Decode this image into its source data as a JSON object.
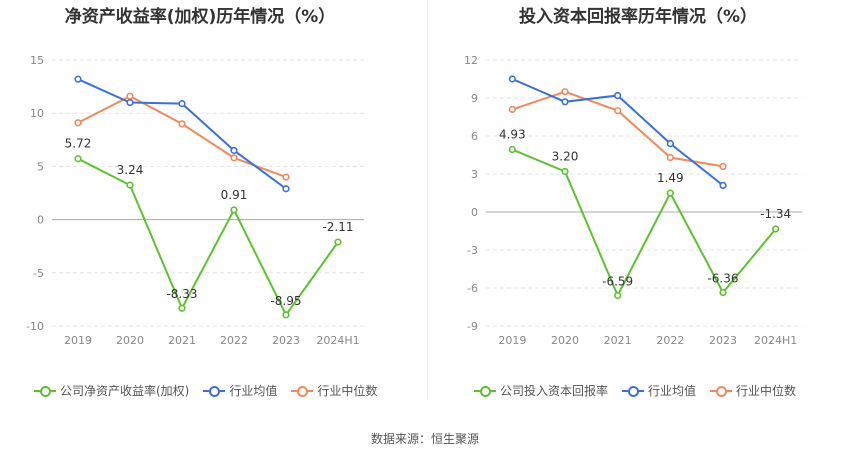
{
  "colors": {
    "company": "#5ec130",
    "industry_avg": "#3a6fdc",
    "industry_median": "#f08a5d"
  },
  "source": "数据来源：恒生聚源",
  "legend": {
    "left": [
      "公司净资产收益率(加权)",
      "行业均值",
      "行业中位数"
    ],
    "right": [
      "公司投入资本回报率",
      "行业均值",
      "行业中位数"
    ]
  },
  "chart_data": [
    {
      "type": "line",
      "title": "净资产收益率(加权)历年情况（%）",
      "categories": [
        "2019",
        "2020",
        "2021",
        "2022",
        "2023",
        "2024H1"
      ],
      "ylim": [
        -10,
        15
      ],
      "yticks": [
        15,
        10,
        5,
        0,
        -5,
        -10
      ],
      "series": [
        {
          "name": "公司净资产收益率(加权)",
          "values": [
            5.72,
            3.24,
            -8.33,
            0.91,
            -8.95,
            -2.11
          ],
          "labels": [
            "5.72",
            "3.24",
            "-8.33",
            "0.91",
            "-8.95",
            "-2.11"
          ]
        },
        {
          "name": "行业均值",
          "values": [
            13.2,
            11.0,
            10.9,
            6.5,
            2.9,
            null
          ]
        },
        {
          "name": "行业中位数",
          "values": [
            9.1,
            11.6,
            9.0,
            5.8,
            4.0,
            null
          ]
        }
      ]
    },
    {
      "type": "line",
      "title": "投入资本回报率历年情况（%）",
      "categories": [
        "2019",
        "2020",
        "2021",
        "2022",
        "2023",
        "2024H1"
      ],
      "ylim": [
        -9,
        12
      ],
      "yticks": [
        12,
        9,
        6,
        3,
        0,
        -3,
        -6,
        -9
      ],
      "series": [
        {
          "name": "公司投入资本回报率",
          "values": [
            4.93,
            3.2,
            -6.59,
            1.49,
            -6.36,
            -1.34
          ],
          "labels": [
            "4.93",
            "3.20",
            "-6.59",
            "1.49",
            "-6.36",
            "-1.34"
          ]
        },
        {
          "name": "行业均值",
          "values": [
            10.5,
            8.7,
            9.2,
            5.4,
            2.1,
            null
          ]
        },
        {
          "name": "行业中位数",
          "values": [
            8.1,
            9.5,
            8.0,
            4.3,
            3.6,
            null
          ]
        }
      ]
    }
  ]
}
